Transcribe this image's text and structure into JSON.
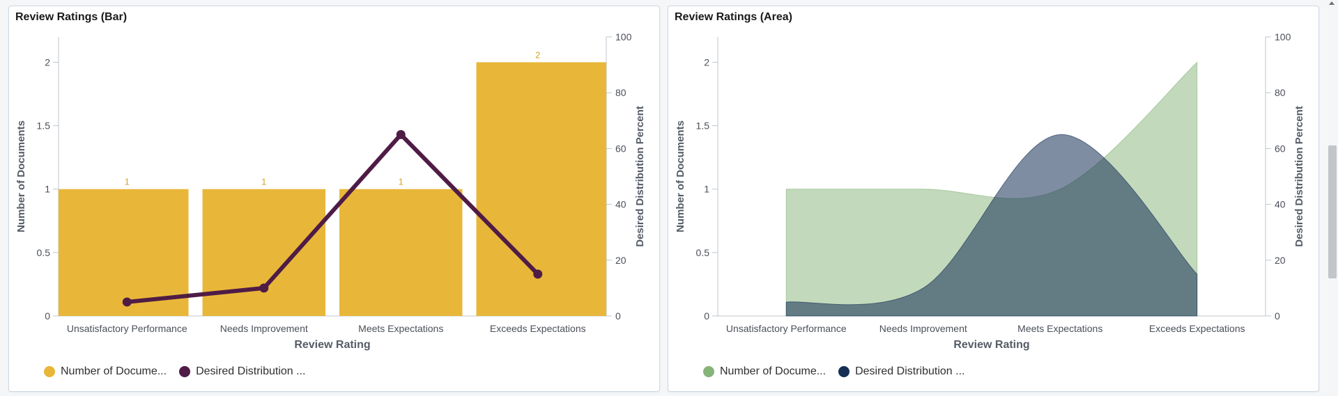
{
  "panels": [
    {
      "title": "Review Ratings (Bar)",
      "legend": [
        {
          "label": "Number of Docume...",
          "color": "#e8b739"
        },
        {
          "label": "Desired Distribution ...",
          "color": "#4f1c46"
        }
      ]
    },
    {
      "title": "Review Ratings (Area)",
      "legend": [
        {
          "label": "Number of Docume...",
          "color": "#85b479"
        },
        {
          "label": "Desired Distribution ...",
          "color": "#162f55"
        }
      ]
    }
  ],
  "chart_data": [
    {
      "type": "bar",
      "title": "Review Ratings (Bar)",
      "categories": [
        "Unsatisfactory Performance",
        "Needs Improvement",
        "Meets Expectations",
        "Exceeds Expectations"
      ],
      "xlabel": "Review Rating",
      "ylabel": "Number of Documents",
      "y2label": "Desired Distribution Percent",
      "ylim": [
        0,
        2.2
      ],
      "y2lim": [
        0,
        100
      ],
      "yticks": [
        "0",
        "0.5",
        "1",
        "1.5",
        "2"
      ],
      "y2ticks": [
        "0",
        "20",
        "40",
        "60",
        "80",
        "100"
      ],
      "series": [
        {
          "name": "Number of Documents",
          "type": "bar",
          "axis": "left",
          "values": [
            1,
            1,
            1,
            2
          ],
          "color": "#e8b739",
          "data_labels": [
            "1",
            "1",
            "1",
            "2"
          ]
        },
        {
          "name": "Desired Distribution Percent",
          "type": "line",
          "axis": "right",
          "values": [
            5,
            10,
            65,
            15
          ],
          "color": "#4f1c46"
        }
      ]
    },
    {
      "type": "area",
      "title": "Review Ratings (Area)",
      "categories": [
        "Unsatisfactory Performance",
        "Needs Improvement",
        "Meets Expectations",
        "Exceeds Expectations"
      ],
      "xlabel": "Review Rating",
      "ylabel": "Number of Documents",
      "y2label": "Desired Distribution Percent",
      "ylim": [
        0,
        2.2
      ],
      "y2lim": [
        0,
        100
      ],
      "yticks": [
        "0",
        "0.5",
        "1",
        "1.5",
        "2"
      ],
      "y2ticks": [
        "0",
        "20",
        "40",
        "60",
        "80",
        "100"
      ],
      "series": [
        {
          "name": "Number of Documents",
          "type": "area",
          "axis": "left",
          "values": [
            1,
            1,
            1,
            2
          ],
          "color": "#85b479"
        },
        {
          "name": "Desired Distribution Percent",
          "type": "area",
          "axis": "right",
          "values": [
            5,
            10,
            65,
            15
          ],
          "color": "#162f55"
        }
      ]
    }
  ]
}
